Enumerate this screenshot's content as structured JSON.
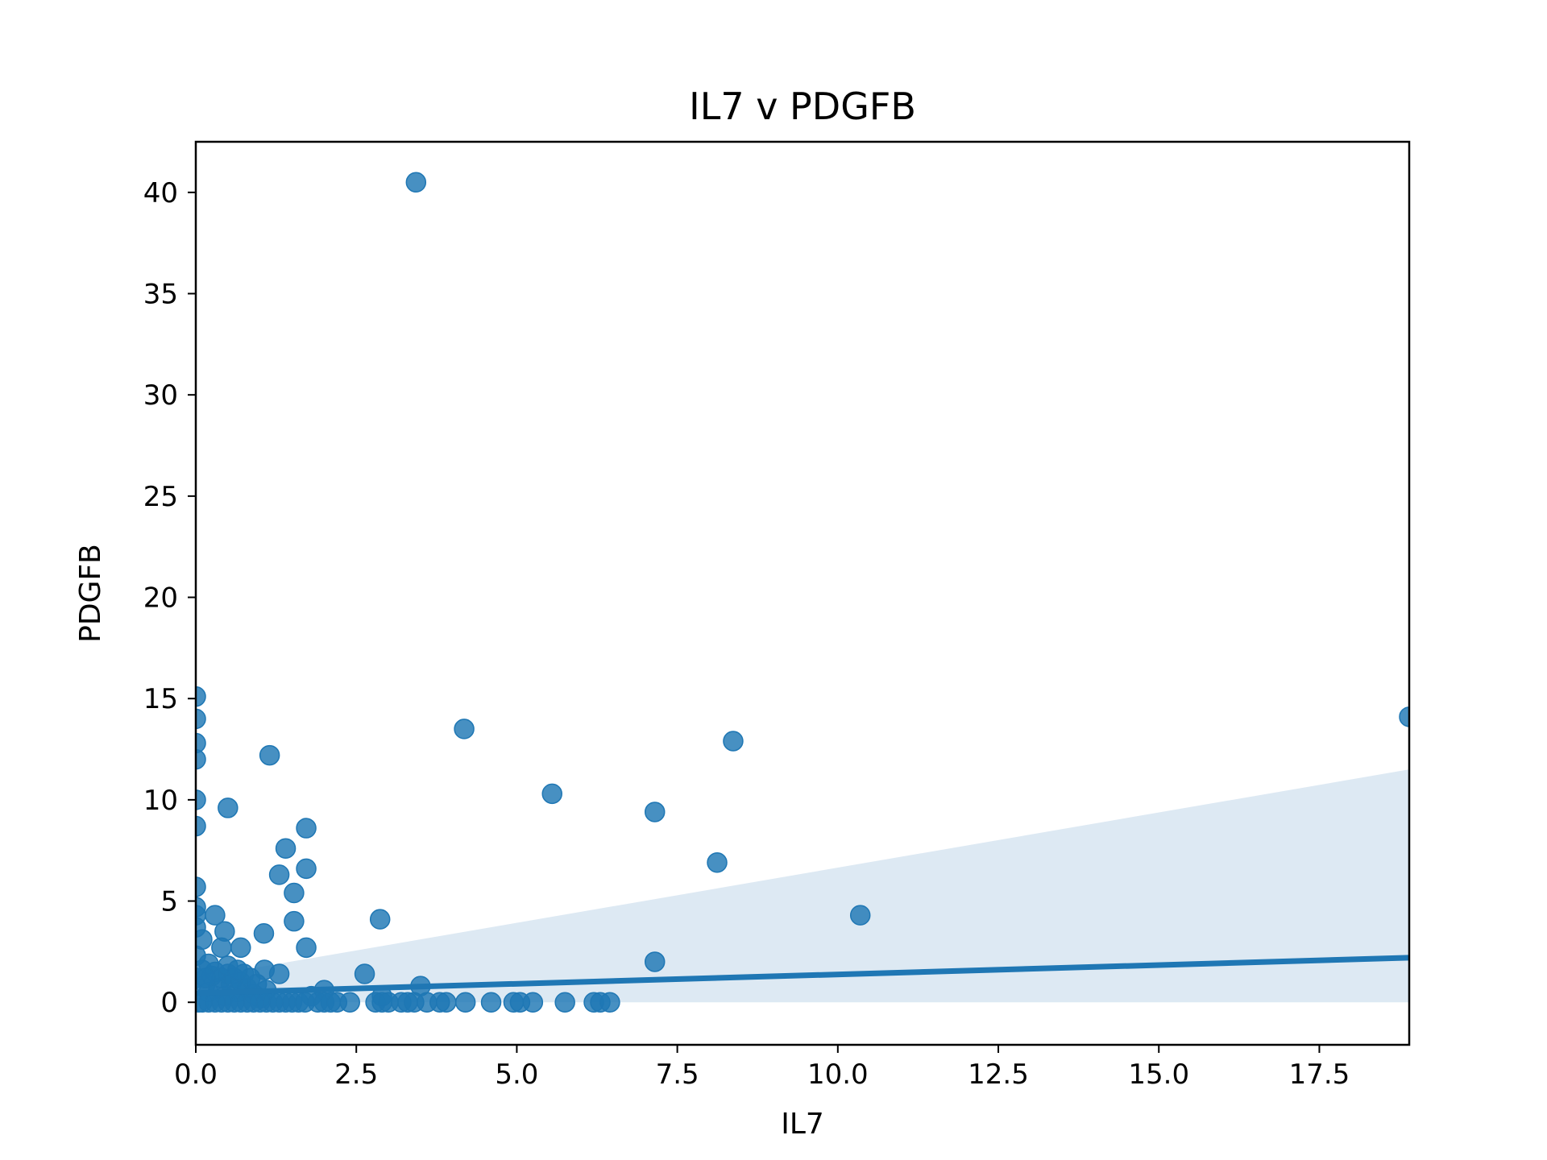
{
  "chart_data": {
    "type": "scatter",
    "title": "IL7 v PDGFB",
    "xlabel": "IL7",
    "ylabel": "PDGFB",
    "xlim": [
      0,
      18.9
    ],
    "ylim": [
      -2.1,
      42.5
    ],
    "xticks": [
      "0.0",
      "2.5",
      "5.0",
      "7.5",
      "10.0",
      "12.5",
      "15.0",
      "17.5"
    ],
    "xtick_values": [
      0,
      2.5,
      5,
      7.5,
      10,
      12.5,
      15,
      17.5
    ],
    "yticks": [
      "0",
      "5",
      "10",
      "15",
      "20",
      "25",
      "30",
      "35",
      "40"
    ],
    "ytick_values": [
      0,
      5,
      10,
      15,
      20,
      25,
      30,
      35,
      40
    ],
    "grid": false,
    "colors": {
      "points": "#1f77b4",
      "regression": "#1f77b4",
      "ci_band": "#dde9f3"
    },
    "points": [
      {
        "x": 3.43,
        "y": 40.5
      },
      {
        "x": 0.0,
        "y": 15.1
      },
      {
        "x": 0.0,
        "y": 14.0
      },
      {
        "x": 0.0,
        "y": 12.8
      },
      {
        "x": 0.0,
        "y": 12.0
      },
      {
        "x": 0.0,
        "y": 10.0
      },
      {
        "x": 0.0,
        "y": 8.7
      },
      {
        "x": 0.0,
        "y": 5.7
      },
      {
        "x": 0.0,
        "y": 4.7
      },
      {
        "x": 0.0,
        "y": 4.3
      },
      {
        "x": 0.0,
        "y": 3.7
      },
      {
        "x": 0.0,
        "y": 2.3
      },
      {
        "x": 0.0,
        "y": 1.2
      },
      {
        "x": 0.1,
        "y": 3.1
      },
      {
        "x": 0.3,
        "y": 4.3
      },
      {
        "x": 0.45,
        "y": 3.5
      },
      {
        "x": 0.4,
        "y": 2.7
      },
      {
        "x": 0.5,
        "y": 9.6
      },
      {
        "x": 0.7,
        "y": 2.7
      },
      {
        "x": 1.06,
        "y": 3.4
      },
      {
        "x": 1.15,
        "y": 12.2
      },
      {
        "x": 1.3,
        "y": 6.3
      },
      {
        "x": 1.4,
        "y": 7.6
      },
      {
        "x": 1.53,
        "y": 5.4
      },
      {
        "x": 1.53,
        "y": 4.0
      },
      {
        "x": 1.72,
        "y": 8.6
      },
      {
        "x": 1.72,
        "y": 6.6
      },
      {
        "x": 1.72,
        "y": 2.7
      },
      {
        "x": 1.3,
        "y": 1.4
      },
      {
        "x": 1.07,
        "y": 1.6
      },
      {
        "x": 2.63,
        "y": 1.4
      },
      {
        "x": 2.87,
        "y": 4.1
      },
      {
        "x": 3.5,
        "y": 0.8
      },
      {
        "x": 4.18,
        "y": 13.5
      },
      {
        "x": 5.55,
        "y": 10.3
      },
      {
        "x": 7.15,
        "y": 9.4
      },
      {
        "x": 7.15,
        "y": 2.0
      },
      {
        "x": 8.12,
        "y": 6.9
      },
      {
        "x": 8.37,
        "y": 12.9
      },
      {
        "x": 10.35,
        "y": 4.3
      },
      {
        "x": 18.9,
        "y": 14.1
      },
      {
        "x": 0.1,
        "y": 1.6
      },
      {
        "x": 0.15,
        "y": 0.9
      },
      {
        "x": 0.2,
        "y": 0.5
      },
      {
        "x": 0.25,
        "y": 1.3
      },
      {
        "x": 0.3,
        "y": 1.5
      },
      {
        "x": 0.35,
        "y": 0.7
      },
      {
        "x": 0.4,
        "y": 1.2
      },
      {
        "x": 0.45,
        "y": 0.3
      },
      {
        "x": 0.5,
        "y": 1.4
      },
      {
        "x": 0.55,
        "y": 0.9
      },
      {
        "x": 0.6,
        "y": 1.2
      },
      {
        "x": 0.65,
        "y": 0.5
      },
      {
        "x": 0.7,
        "y": 1.0
      },
      {
        "x": 0.75,
        "y": 1.4
      },
      {
        "x": 0.8,
        "y": 0.7
      },
      {
        "x": 0.85,
        "y": 1.2
      },
      {
        "x": 0.9,
        "y": 0.4
      },
      {
        "x": 0.95,
        "y": 0.9
      },
      {
        "x": 1.0,
        "y": 0.2
      },
      {
        "x": 1.1,
        "y": 0.6
      },
      {
        "x": 0.2,
        "y": 1.9
      },
      {
        "x": 0.5,
        "y": 1.8
      },
      {
        "x": 0.65,
        "y": 1.6
      },
      {
        "x": 0.15,
        "y": 1.2
      },
      {
        "x": 2.0,
        "y": 0.6
      },
      {
        "x": 1.8,
        "y": 0.3
      },
      {
        "x": 2.9,
        "y": 0.3
      },
      {
        "x": 0.05,
        "y": 0.0
      },
      {
        "x": 0.1,
        "y": 0.0
      },
      {
        "x": 0.2,
        "y": 0.0
      },
      {
        "x": 0.3,
        "y": 0.0
      },
      {
        "x": 0.4,
        "y": 0.0
      },
      {
        "x": 0.5,
        "y": 0.0
      },
      {
        "x": 0.6,
        "y": 0.0
      },
      {
        "x": 0.7,
        "y": 0.0
      },
      {
        "x": 0.8,
        "y": 0.0
      },
      {
        "x": 0.9,
        "y": 0.0
      },
      {
        "x": 1.0,
        "y": 0.0
      },
      {
        "x": 1.1,
        "y": 0.0
      },
      {
        "x": 1.2,
        "y": 0.0
      },
      {
        "x": 1.3,
        "y": 0.0
      },
      {
        "x": 1.4,
        "y": 0.0
      },
      {
        "x": 1.5,
        "y": 0.0
      },
      {
        "x": 1.6,
        "y": 0.0
      },
      {
        "x": 1.7,
        "y": 0.0
      },
      {
        "x": 1.9,
        "y": 0.0
      },
      {
        "x": 2.0,
        "y": 0.0
      },
      {
        "x": 2.1,
        "y": 0.0
      },
      {
        "x": 2.2,
        "y": 0.0
      },
      {
        "x": 2.4,
        "y": 0.0
      },
      {
        "x": 2.8,
        "y": 0.0
      },
      {
        "x": 2.9,
        "y": 0.0
      },
      {
        "x": 3.0,
        "y": 0.0
      },
      {
        "x": 3.2,
        "y": 0.0
      },
      {
        "x": 3.3,
        "y": 0.0
      },
      {
        "x": 3.4,
        "y": 0.0
      },
      {
        "x": 3.6,
        "y": 0.0
      },
      {
        "x": 3.8,
        "y": 0.0
      },
      {
        "x": 3.9,
        "y": 0.0
      },
      {
        "x": 4.2,
        "y": 0.0
      },
      {
        "x": 4.6,
        "y": 0.0
      },
      {
        "x": 4.95,
        "y": 0.0
      },
      {
        "x": 5.05,
        "y": 0.0
      },
      {
        "x": 5.25,
        "y": 0.0
      },
      {
        "x": 5.75,
        "y": 0.0
      },
      {
        "x": 6.2,
        "y": 0.0
      },
      {
        "x": 6.3,
        "y": 0.0
      },
      {
        "x": 6.45,
        "y": 0.0
      }
    ],
    "regression": {
      "x": [
        0,
        18.9
      ],
      "y": [
        0.45,
        2.2
      ],
      "ci_upper": [
        1.2,
        11.5
      ],
      "ci_lower": [
        0.0,
        0.0
      ]
    }
  }
}
